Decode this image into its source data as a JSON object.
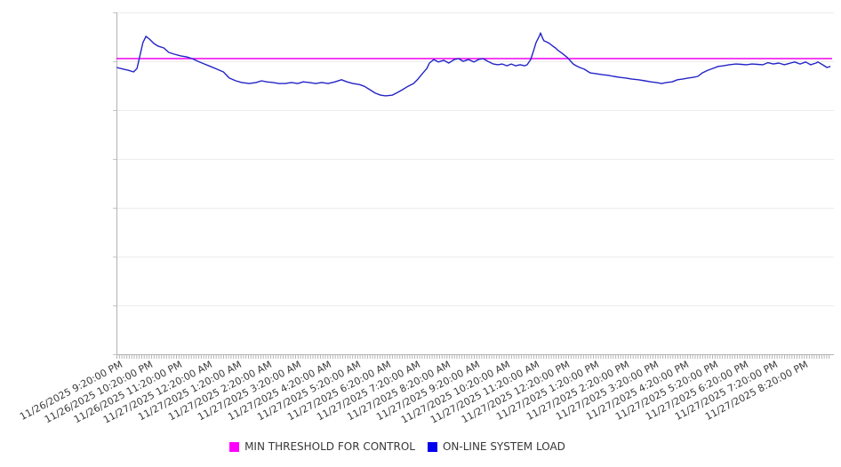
{
  "legend": {
    "items": [
      {
        "label": "MIN THRESHOLD FOR CONTROL",
        "color": "#ff00ff"
      },
      {
        "label": "ON-LINE SYSTEM LOAD",
        "color": "#0000ee"
      }
    ]
  },
  "chart_data": {
    "type": "line",
    "title": "",
    "xlabel": "",
    "ylabel": "",
    "x_axis": {
      "start": "11/26/2025 9:20:00 PM",
      "end_label": "11/27/2025 8:20:00 PM",
      "labeled_tick_interval": "1 hour",
      "minor_tick_interval": "5 minutes",
      "tick_labels": [
        "11/26/2025 9:20:00 PM",
        "11/26/2025 10:20:00 PM",
        "11/26/2025 11:20:00 PM",
        "11/27/2025 12:20:00 AM",
        "11/27/2025 1:20:00 AM",
        "11/27/2025 2:20:00 AM",
        "11/27/2025 3:20:00 AM",
        "11/27/2025 4:20:00 AM",
        "11/27/2025 5:20:00 AM",
        "11/27/2025 6:20:00 AM",
        "11/27/2025 7:20:00 AM",
        "11/27/2025 8:20:00 AM",
        "11/27/2025 9:20:00 AM",
        "11/27/2025 10:20:00 AM",
        "11/27/2025 11:20:00 AM",
        "11/27/2025 12:20:00 PM",
        "11/27/2025 1:20:00 PM",
        "11/27/2025 2:20:00 PM",
        "11/27/2025 3:20:00 PM",
        "11/27/2025 4:20:00 PM",
        "11/27/2025 5:20:00 PM",
        "11/27/2025 6:20:00 PM",
        "11/27/2025 7:20:00 PM",
        "11/27/2025 8:20:00 PM"
      ]
    },
    "y_axis": {
      "labels_visible": false,
      "ylim": [
        0,
        100
      ],
      "gridline_count": 8,
      "note": "no numeric y-axis labels are shown; values below are percent of plot height"
    },
    "series": [
      {
        "name": "MIN THRESHOLD FOR CONTROL",
        "type": "horizontal-threshold-line",
        "color": "#f000f0",
        "value": 86.5
      },
      {
        "name": "ON-LINE SYSTEM LOAD",
        "type": "line",
        "color": "#2323c8",
        "x_unit": "minutes after 11/26/2025 9:20:00 PM",
        "points": [
          [
            -5,
            83.9
          ],
          [
            9,
            83.4
          ],
          [
            18,
            83.1
          ],
          [
            29,
            82.6
          ],
          [
            36,
            83.6
          ],
          [
            41,
            86.8
          ],
          [
            48,
            91.2
          ],
          [
            54,
            93.0
          ],
          [
            61,
            92.2
          ],
          [
            70,
            90.9
          ],
          [
            79,
            90.1
          ],
          [
            90,
            89.6
          ],
          [
            100,
            88.3
          ],
          [
            111,
            87.8
          ],
          [
            124,
            87.3
          ],
          [
            136,
            87.0
          ],
          [
            147,
            86.5
          ],
          [
            159,
            85.7
          ],
          [
            172,
            84.9
          ],
          [
            184,
            84.2
          ],
          [
            197,
            83.4
          ],
          [
            210,
            82.6
          ],
          [
            222,
            80.8
          ],
          [
            235,
            80.0
          ],
          [
            247,
            79.5
          ],
          [
            262,
            79.2
          ],
          [
            276,
            79.5
          ],
          [
            287,
            80.0
          ],
          [
            297,
            79.7
          ],
          [
            310,
            79.5
          ],
          [
            322,
            79.2
          ],
          [
            335,
            79.2
          ],
          [
            347,
            79.5
          ],
          [
            360,
            79.2
          ],
          [
            371,
            79.7
          ],
          [
            383,
            79.5
          ],
          [
            396,
            79.2
          ],
          [
            408,
            79.5
          ],
          [
            421,
            79.2
          ],
          [
            435,
            79.7
          ],
          [
            448,
            80.3
          ],
          [
            459,
            79.7
          ],
          [
            471,
            79.2
          ],
          [
            484,
            78.9
          ],
          [
            494,
            78.4
          ],
          [
            505,
            77.4
          ],
          [
            516,
            76.4
          ],
          [
            527,
            75.8
          ],
          [
            537,
            75.6
          ],
          [
            550,
            75.8
          ],
          [
            561,
            76.6
          ],
          [
            571,
            77.4
          ],
          [
            582,
            78.4
          ],
          [
            593,
            79.2
          ],
          [
            602,
            80.5
          ],
          [
            611,
            82.1
          ],
          [
            620,
            83.6
          ],
          [
            625,
            85.2
          ],
          [
            634,
            86.2
          ],
          [
            643,
            85.5
          ],
          [
            654,
            86.0
          ],
          [
            664,
            85.2
          ],
          [
            675,
            86.2
          ],
          [
            684,
            86.5
          ],
          [
            693,
            85.7
          ],
          [
            704,
            86.2
          ],
          [
            715,
            85.5
          ],
          [
            724,
            86.2
          ],
          [
            733,
            86.5
          ],
          [
            743,
            85.7
          ],
          [
            754,
            84.9
          ],
          [
            763,
            84.7
          ],
          [
            772,
            84.9
          ],
          [
            781,
            84.4
          ],
          [
            790,
            84.9
          ],
          [
            799,
            84.4
          ],
          [
            808,
            84.7
          ],
          [
            817,
            84.4
          ],
          [
            822,
            84.7
          ],
          [
            829,
            86.2
          ],
          [
            835,
            88.8
          ],
          [
            840,
            91.2
          ],
          [
            847,
            93.2
          ],
          [
            849,
            94.0
          ],
          [
            853,
            92.5
          ],
          [
            856,
            91.7
          ],
          [
            861,
            91.4
          ],
          [
            867,
            90.9
          ],
          [
            874,
            90.1
          ],
          [
            879,
            89.6
          ],
          [
            885,
            88.8
          ],
          [
            892,
            88.1
          ],
          [
            897,
            87.5
          ],
          [
            903,
            86.8
          ],
          [
            910,
            85.7
          ],
          [
            915,
            84.9
          ],
          [
            921,
            84.4
          ],
          [
            928,
            83.9
          ],
          [
            937,
            83.4
          ],
          [
            949,
            82.3
          ],
          [
            960,
            82.1
          ],
          [
            973,
            81.8
          ],
          [
            985,
            81.6
          ],
          [
            996,
            81.3
          ],
          [
            1008,
            81.0
          ],
          [
            1021,
            80.8
          ],
          [
            1033,
            80.5
          ],
          [
            1046,
            80.3
          ],
          [
            1059,
            80.0
          ],
          [
            1071,
            79.7
          ],
          [
            1082,
            79.5
          ],
          [
            1093,
            79.2
          ],
          [
            1103,
            79.5
          ],
          [
            1114,
            79.7
          ],
          [
            1125,
            80.3
          ],
          [
            1135,
            80.5
          ],
          [
            1146,
            80.8
          ],
          [
            1157,
            81.0
          ],
          [
            1166,
            81.3
          ],
          [
            1175,
            82.3
          ],
          [
            1186,
            83.1
          ],
          [
            1196,
            83.6
          ],
          [
            1207,
            84.2
          ],
          [
            1218,
            84.4
          ],
          [
            1229,
            84.7
          ],
          [
            1243,
            84.9
          ],
          [
            1254,
            84.8
          ],
          [
            1264,
            84.7
          ],
          [
            1275,
            84.9
          ],
          [
            1286,
            84.8
          ],
          [
            1297,
            84.7
          ],
          [
            1307,
            85.3
          ],
          [
            1318,
            84.9
          ],
          [
            1329,
            85.2
          ],
          [
            1340,
            84.7
          ],
          [
            1350,
            85.1
          ],
          [
            1361,
            85.5
          ],
          [
            1372,
            84.9
          ],
          [
            1383,
            85.5
          ],
          [
            1393,
            84.7
          ],
          [
            1404,
            85.2
          ],
          [
            1408,
            85.5
          ],
          [
            1417,
            84.7
          ],
          [
            1426,
            83.9
          ],
          [
            1433,
            84.2
          ]
        ]
      }
    ],
    "legend_position": "bottom-center",
    "grid": "horizontal gridlines only"
  }
}
